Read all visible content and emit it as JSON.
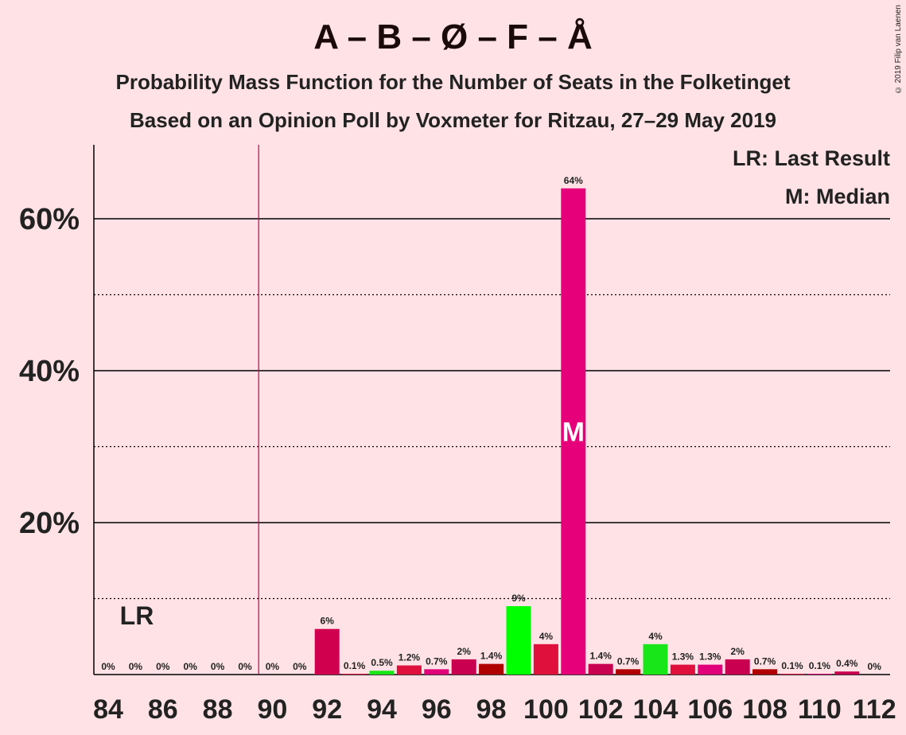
{
  "title": "A – B – Ø – F – Å",
  "subtitle1": "Probability Mass Function for the Number of Seats in the Folketinget",
  "subtitle2": "Based on an Opinion Poll by Voxmeter for Ritzau, 27–29 May 2019",
  "copyright": "© 2019 Filip van Laenen",
  "legend": {
    "last_result": "LR: Last Result",
    "median": "M: Median"
  },
  "markers": {
    "last_result_label": "LR",
    "median_label": "M"
  },
  "chart_data": {
    "type": "bar",
    "x": [
      84,
      85,
      86,
      87,
      88,
      89,
      90,
      91,
      92,
      93,
      94,
      95,
      96,
      97,
      98,
      99,
      100,
      101,
      102,
      103,
      104,
      105,
      106,
      107,
      108,
      109,
      110,
      111,
      112
    ],
    "values": [
      0,
      0,
      0,
      0,
      0,
      0,
      0,
      0,
      6,
      0.1,
      0.5,
      1.2,
      0.7,
      2,
      1.4,
      9,
      4,
      64,
      1.4,
      0.7,
      4,
      1.3,
      1.3,
      2,
      0.7,
      0.1,
      0.1,
      0.4,
      0
    ],
    "labels": [
      "0%",
      "0%",
      "0%",
      "0%",
      "0%",
      "0%",
      "0%",
      "0%",
      "6%",
      "0.1%",
      "0.5%",
      "1.2%",
      "0.7%",
      "2%",
      "1.4%",
      "9%",
      "4%",
      "64%",
      "1.4%",
      "0.7%",
      "4%",
      "1.3%",
      "1.3%",
      "2%",
      "0.7%",
      "0.1%",
      "0.1%",
      "0.4%",
      "0%"
    ],
    "colors": [
      "#c8004f",
      "#c8004f",
      "#c8004f",
      "#c8004f",
      "#c8004f",
      "#c8004f",
      "#c8004f",
      "#c8004f",
      "#d1004f",
      "#e0103c",
      "#19e619",
      "#e0103c",
      "#e2007a",
      "#c8004f",
      "#b00000",
      "#00ff00",
      "#e0103c",
      "#e6007a",
      "#c8004f",
      "#b00000",
      "#19e619",
      "#e0103c",
      "#e2007a",
      "#c8004f",
      "#b00000",
      "#e0103c",
      "#e2007a",
      "#c8004f",
      "#b00000"
    ],
    "x_tick_labels": [
      "84",
      "86",
      "88",
      "90",
      "92",
      "94",
      "96",
      "98",
      "100",
      "102",
      "104",
      "106",
      "108",
      "110",
      "112"
    ],
    "y_tick_labels": [
      "20%",
      "40%",
      "60%"
    ],
    "ylim": [
      0,
      70
    ],
    "last_result_seat": 89.5,
    "median_seat": 101
  }
}
